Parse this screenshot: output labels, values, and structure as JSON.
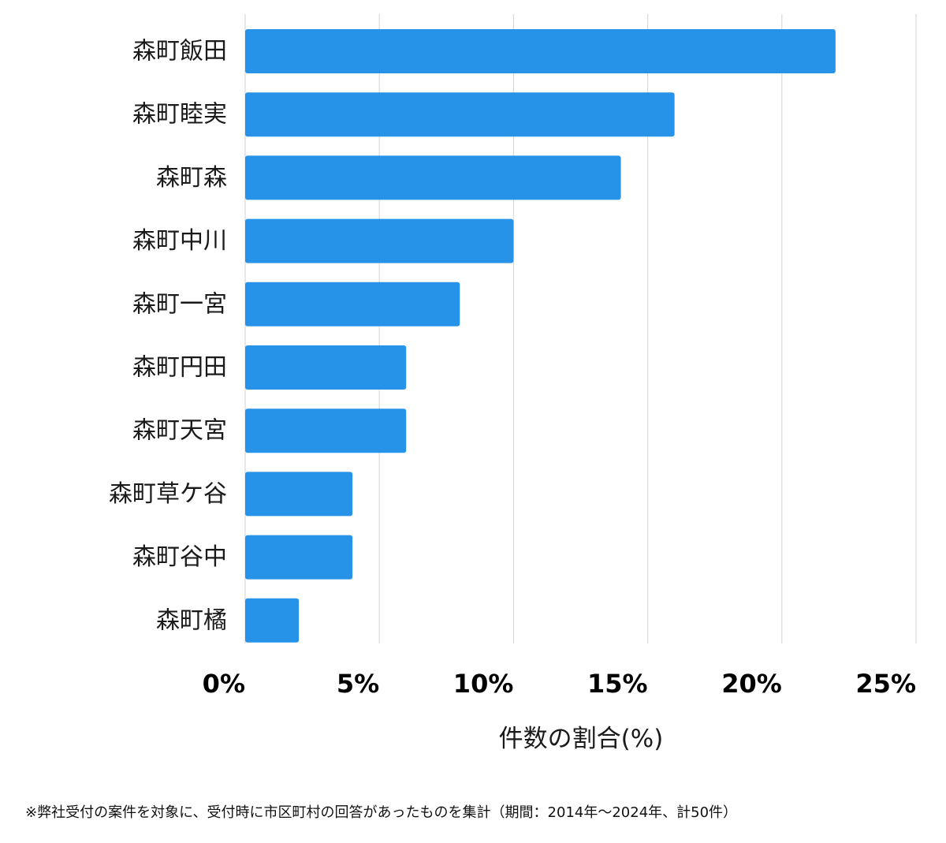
{
  "chart_data": {
    "type": "bar",
    "orientation": "horizontal",
    "categories": [
      "森町飯田",
      "森町睦実",
      "森町森",
      "森町中川",
      "森町一宮",
      "森町円田",
      "森町天宮",
      "森町草ケ谷",
      "森町谷中",
      "森町橘"
    ],
    "values": [
      22,
      16,
      14,
      10,
      8,
      6,
      6,
      4,
      4,
      2
    ],
    "xlabel": "件数の割合(%)",
    "xlim": [
      0,
      25
    ],
    "xticks": [
      0,
      5,
      10,
      15,
      20,
      25
    ],
    "xtick_labels": [
      "0%",
      "5%",
      "10%",
      "15%",
      "20%",
      "25%"
    ],
    "bar_color": "#2793e8",
    "grid": "vertical",
    "grid_color": "#d9d9d9"
  },
  "footnote": "※弊社受付の案件を対象に、受付時に市区町村の回答があったものを集計（期間：2014年～2024年、計50件）"
}
